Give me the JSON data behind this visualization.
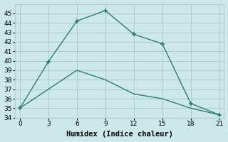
{
  "xlabel": "Humidex (Indice chaleur)",
  "bg_color": "#cce8e8",
  "grid_color": "#b0cccc",
  "line_color": "#2e7d6e",
  "line1_x": [
    0,
    3,
    6,
    9,
    12,
    15,
    18,
    21
  ],
  "line1_y": [
    35.0,
    39.9,
    44.2,
    45.3,
    42.8,
    41.8,
    35.5,
    34.3
  ],
  "line2_x": [
    0,
    3,
    6,
    9,
    12,
    15,
    18,
    21
  ],
  "line2_y": [
    35.0,
    37.0,
    39.0,
    38.0,
    36.5,
    36.0,
    35.0,
    34.3
  ],
  "xlim": [
    -0.5,
    21.5
  ],
  "ylim": [
    34,
    46
  ],
  "xticks": [
    0,
    3,
    6,
    9,
    12,
    15,
    18,
    21
  ],
  "yticks": [
    34,
    35,
    36,
    37,
    38,
    39,
    40,
    41,
    42,
    43,
    44,
    45
  ],
  "label_fontsize": 7.5,
  "tick_fontsize": 6.5
}
